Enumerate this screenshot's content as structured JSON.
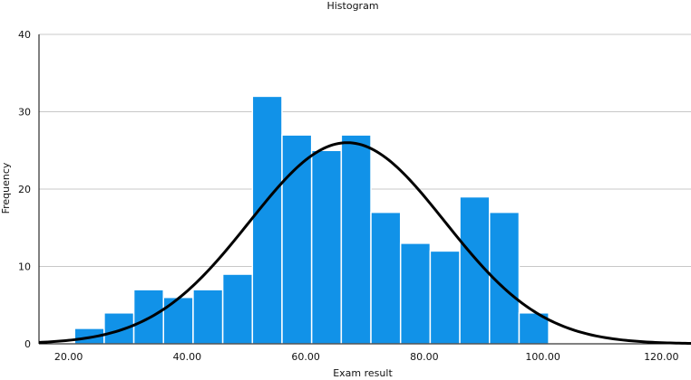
{
  "chart_data": {
    "type": "bar",
    "title": "Histogram",
    "xlabel": "Exam result",
    "ylabel": "Frequency",
    "xlim": [
      15,
      125
    ],
    "ylim": [
      0,
      40
    ],
    "x_ticks": [
      20,
      40,
      60,
      80,
      100,
      120
    ],
    "x_tick_labels": [
      "20.00",
      "40.00",
      "60.00",
      "80.00",
      "100.00",
      "120.00"
    ],
    "y_ticks": [
      0,
      10,
      20,
      30,
      40
    ],
    "y_tick_labels": [
      "0",
      "10",
      "20",
      "30",
      "40"
    ],
    "grid": true,
    "bins": [
      {
        "start": 21,
        "end": 26,
        "value": 2
      },
      {
        "start": 26,
        "end": 31,
        "value": 4
      },
      {
        "start": 31,
        "end": 36,
        "value": 7
      },
      {
        "start": 36,
        "end": 41,
        "value": 6
      },
      {
        "start": 41,
        "end": 46,
        "value": 7
      },
      {
        "start": 46,
        "end": 51,
        "value": 9
      },
      {
        "start": 51,
        "end": 56,
        "value": 32
      },
      {
        "start": 56,
        "end": 61,
        "value": 27
      },
      {
        "start": 61,
        "end": 66,
        "value": 25
      },
      {
        "start": 66,
        "end": 71,
        "value": 27
      },
      {
        "start": 71,
        "end": 76,
        "value": 17
      },
      {
        "start": 76,
        "end": 81,
        "value": 13
      },
      {
        "start": 81,
        "end": 86,
        "value": 12
      },
      {
        "start": 86,
        "end": 91,
        "value": 19
      },
      {
        "start": 91,
        "end": 96,
        "value": 17
      },
      {
        "start": 96,
        "end": 101,
        "value": 4
      }
    ],
    "normal_curve": {
      "mean": 67,
      "sd": 16.5,
      "peak": 26
    },
    "bar_color": "#1192e8",
    "curve_color": "#000000"
  }
}
